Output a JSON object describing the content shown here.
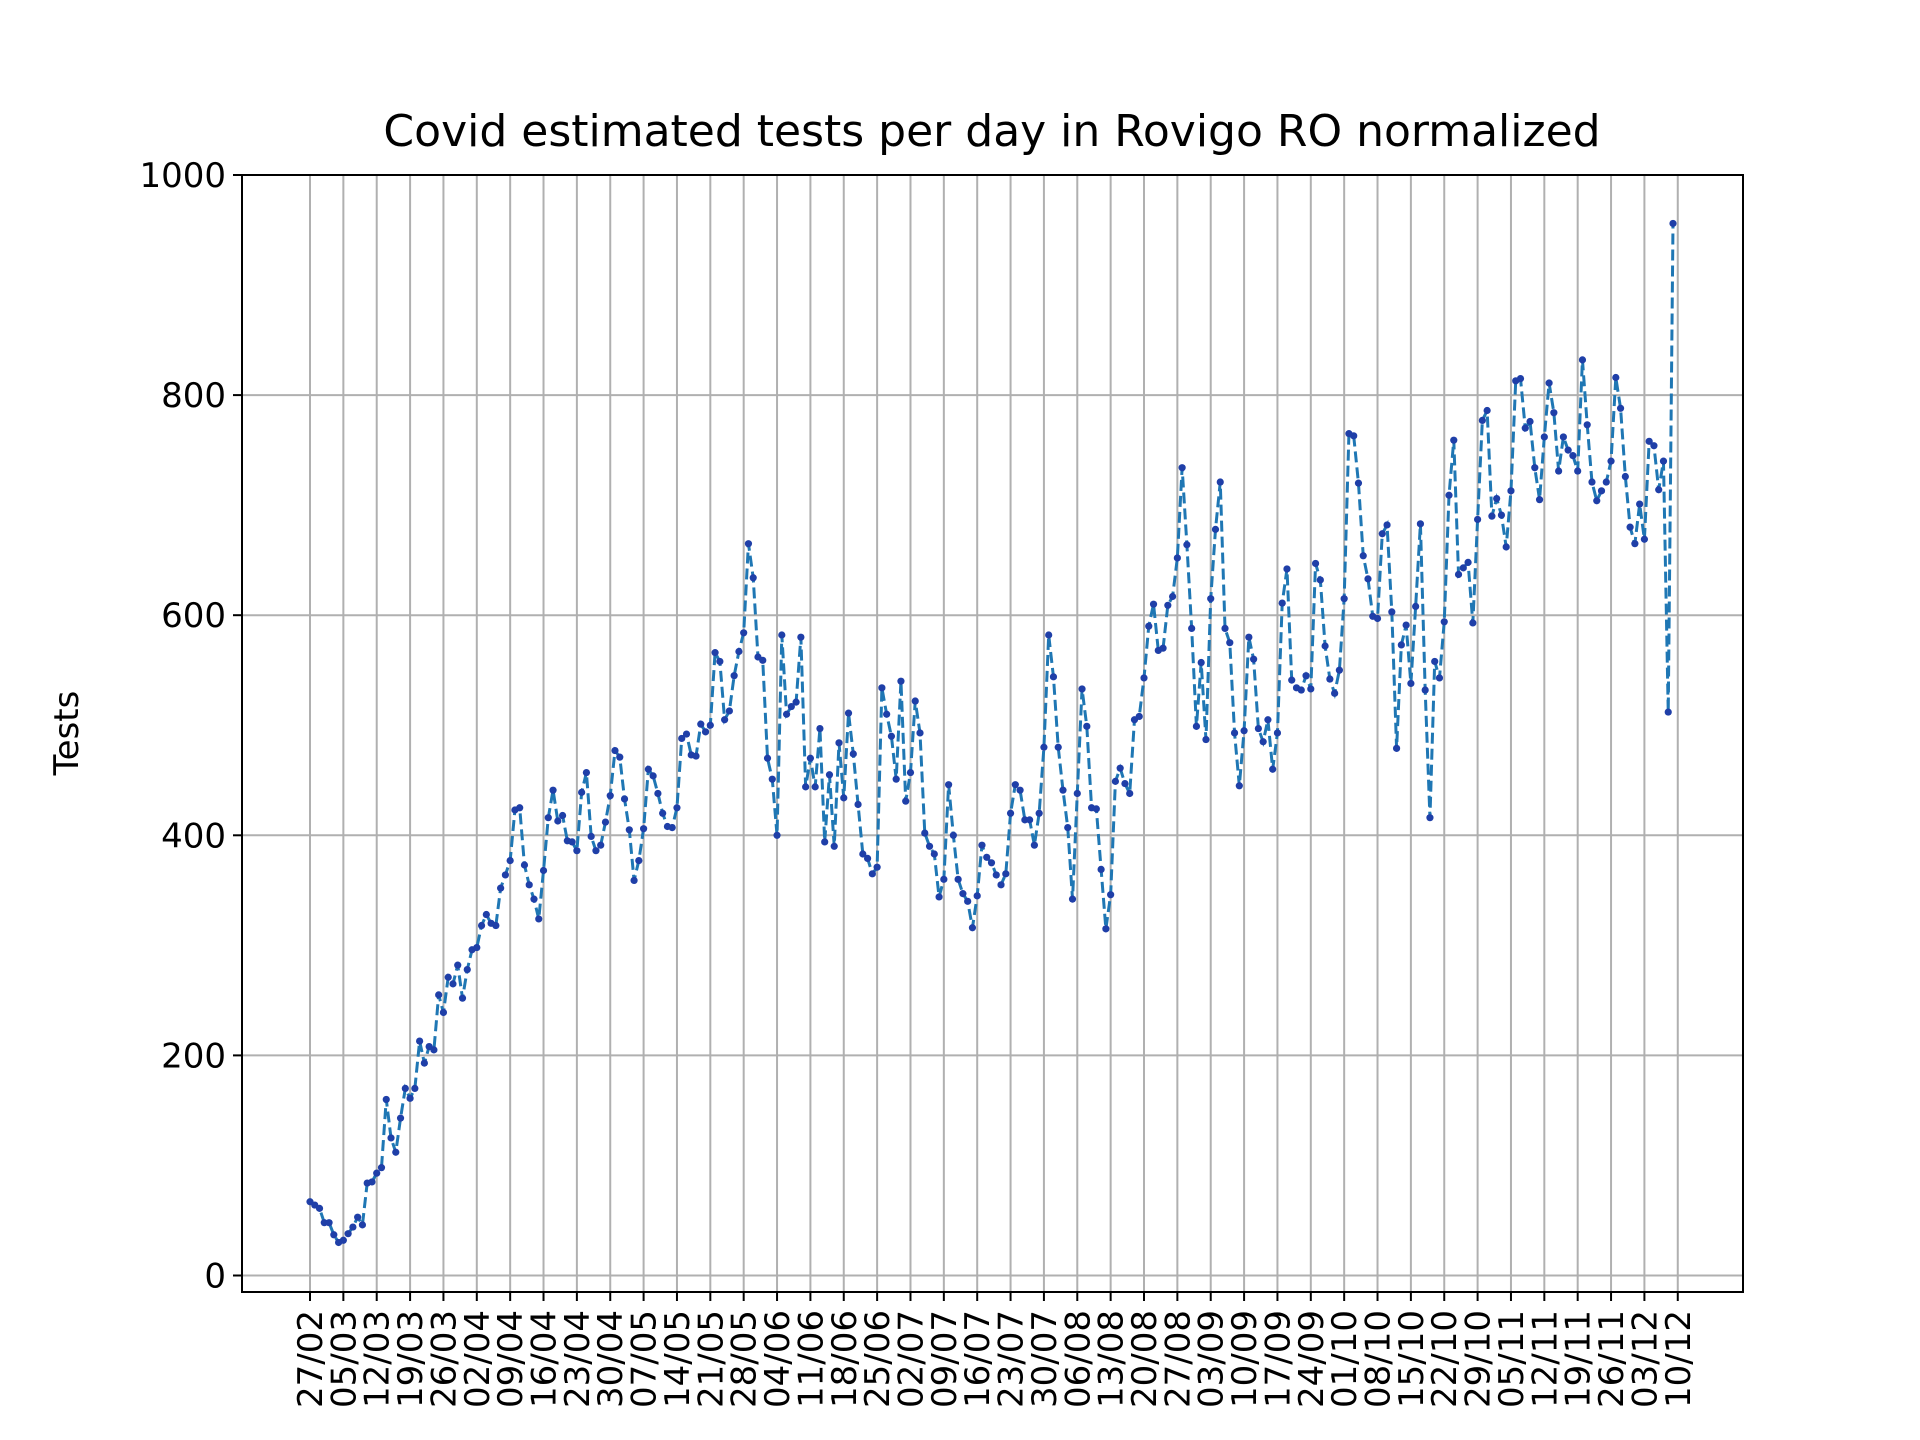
{
  "chart_data": {
    "type": "line",
    "title": "Covid estimated tests per day in Rovigo RO normalized",
    "xlabel": "",
    "ylabel": "Tests",
    "ylim": [
      -15,
      1000
    ],
    "yticks": [
      0,
      200,
      400,
      600,
      800,
      1000
    ],
    "grid": true,
    "line_color": "#1f77b4",
    "marker_color": "#1f3fa8",
    "line_style": "dashed",
    "x_tick_labels": [
      "27/02",
      "05/03",
      "12/03",
      "19/03",
      "26/03",
      "02/04",
      "09/04",
      "16/04",
      "23/04",
      "30/04",
      "07/05",
      "14/05",
      "21/05",
      "28/05",
      "04/06",
      "11/06",
      "18/06",
      "25/06",
      "02/07",
      "09/07",
      "16/07",
      "23/07",
      "30/07",
      "06/08",
      "13/08",
      "20/08",
      "27/08",
      "03/09",
      "10/09",
      "17/09",
      "24/09",
      "01/10",
      "08/10",
      "15/10",
      "22/10",
      "29/10",
      "05/11",
      "12/11",
      "19/11",
      "26/11",
      "03/12",
      "10/12"
    ],
    "series": [
      {
        "values": [
          67,
          64,
          61,
          48,
          48,
          37,
          30,
          32,
          38,
          44,
          53,
          46,
          84,
          85,
          93,
          98,
          160,
          125,
          112,
          143,
          170,
          161,
          170,
          213,
          193,
          208,
          205,
          255,
          239,
          271,
          265,
          282,
          252,
          278,
          296,
          298,
          318,
          328,
          320,
          318,
          352,
          364,
          377,
          423,
          425,
          373,
          355,
          342,
          324,
          368,
          416,
          441,
          413,
          418,
          395,
          394,
          386,
          439,
          457,
          399,
          386,
          391,
          412,
          436,
          477,
          471,
          433,
          405,
          359,
          377,
          406,
          460,
          454,
          438,
          420,
          408,
          407,
          425,
          488,
          492,
          473,
          472,
          501,
          494,
          500,
          566,
          558,
          505,
          513,
          545,
          567,
          584,
          665,
          634,
          562,
          559,
          470,
          451,
          400,
          582,
          510,
          517,
          521,
          580,
          444,
          470,
          444,
          497,
          394,
          455,
          390,
          484,
          434,
          511,
          474,
          428,
          383,
          379,
          365,
          371,
          534,
          510,
          490,
          451,
          540,
          431,
          457,
          522,
          493,
          402,
          390,
          383,
          344,
          360,
          446,
          400,
          360,
          347,
          340,
          316,
          345,
          391,
          380,
          375,
          364,
          355,
          365,
          420,
          446,
          441,
          414,
          414,
          391,
          420,
          480,
          582,
          544,
          480,
          441,
          407,
          342,
          438,
          533,
          499,
          425,
          424,
          369,
          315,
          346,
          449,
          461,
          447,
          438,
          505,
          508,
          543,
          590,
          610,
          568,
          570,
          609,
          617,
          652,
          734,
          664,
          588,
          499,
          557,
          487,
          615,
          678,
          721,
          588,
          575,
          493,
          445,
          495,
          580,
          560,
          497,
          485,
          505,
          460,
          493,
          611,
          642,
          541,
          534,
          532,
          545,
          533,
          647,
          632,
          572,
          542,
          529,
          550,
          615,
          765,
          763,
          720,
          654,
          633,
          599,
          597,
          674,
          682,
          603,
          479,
          573,
          591,
          538,
          608,
          683,
          532,
          416,
          558,
          543,
          594,
          709,
          759,
          637,
          643,
          648,
          593,
          687,
          777,
          786,
          690,
          706,
          691,
          662,
          713,
          813,
          815,
          770,
          776,
          734,
          705,
          762,
          811,
          784,
          731,
          762,
          750,
          745,
          731,
          832,
          773,
          721,
          704,
          713,
          721,
          740,
          816,
          788,
          726,
          680,
          665,
          701,
          669,
          758,
          754,
          714,
          740,
          512,
          956
        ]
      }
    ]
  }
}
